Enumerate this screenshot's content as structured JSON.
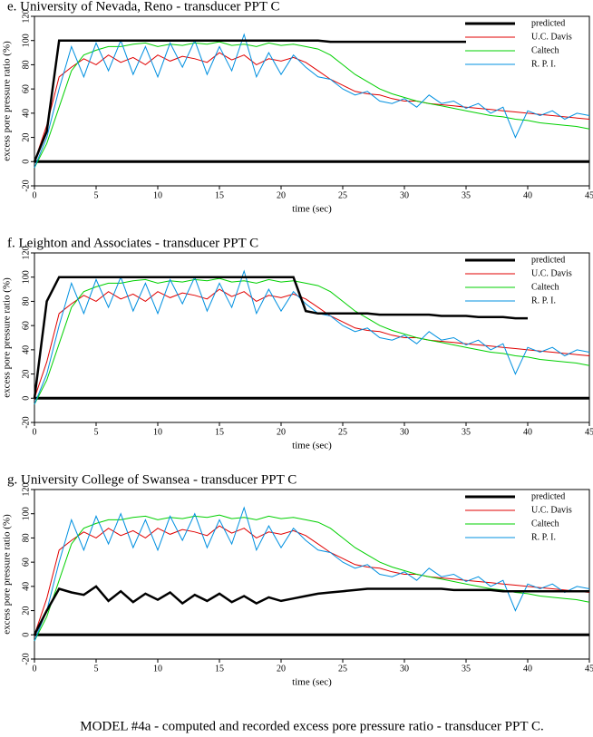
{
  "chart_data": [
    {
      "type": "line",
      "title": "e. University of Nevada, Reno - transducer PPT C",
      "x_label": "time (sec)",
      "y_label": "excess pore pressure ratio (%)",
      "xlim": [
        0,
        45
      ],
      "ylim": [
        -20,
        120
      ],
      "xticks": [
        0,
        5,
        10,
        15,
        20,
        25,
        30,
        35,
        40,
        45
      ],
      "yticks": [
        -20,
        0,
        20,
        40,
        60,
        80,
        100,
        120
      ],
      "x": [
        0,
        1,
        2,
        3,
        4,
        5,
        6,
        7,
        8,
        9,
        10,
        11,
        12,
        13,
        14,
        15,
        16,
        17,
        18,
        19,
        20,
        21,
        22,
        23,
        24,
        25,
        26,
        27,
        28,
        29,
        30,
        31,
        32,
        33,
        34,
        35,
        36,
        37,
        38,
        39,
        40,
        41,
        42,
        43,
        44,
        45
      ],
      "series": [
        {
          "name": "predicted",
          "color": "#000000",
          "values": [
            0,
            25,
            100,
            100,
            100,
            100,
            100,
            100,
            100,
            100,
            100,
            100,
            100,
            100,
            100,
            100,
            100,
            100,
            100,
            100,
            100,
            100,
            100,
            100,
            99,
            99,
            99,
            99,
            99,
            99,
            99,
            99,
            99,
            99,
            99,
            99,
            null,
            null,
            null,
            null,
            null,
            null,
            null,
            null,
            null,
            null
          ]
        },
        {
          "name": "U.C. Davis",
          "color": "#e00000",
          "values": [
            0,
            30,
            70,
            78,
            85,
            80,
            88,
            82,
            86,
            80,
            88,
            83,
            87,
            85,
            82,
            90,
            84,
            88,
            80,
            85,
            83,
            86,
            82,
            75,
            68,
            63,
            58,
            56,
            55,
            52,
            50,
            50,
            48,
            47,
            46,
            45,
            44,
            43,
            42,
            41,
            40,
            39,
            38,
            37,
            36,
            35
          ]
        },
        {
          "name": "Caltech",
          "color": "#00d000",
          "values": [
            -5,
            15,
            45,
            75,
            88,
            92,
            95,
            95,
            97,
            98,
            95,
            97,
            96,
            98,
            97,
            99,
            96,
            97,
            95,
            98,
            96,
            97,
            95,
            93,
            88,
            80,
            72,
            66,
            60,
            56,
            53,
            50,
            48,
            46,
            44,
            42,
            40,
            38,
            37,
            35,
            34,
            32,
            31,
            30,
            29,
            27
          ]
        },
        {
          "name": "R. P. I.",
          "color": "#0090e0",
          "values": [
            -5,
            20,
            60,
            95,
            70,
            98,
            75,
            100,
            72,
            95,
            70,
            98,
            78,
            100,
            72,
            95,
            75,
            105,
            70,
            90,
            72,
            88,
            78,
            70,
            68,
            60,
            55,
            58,
            50,
            48,
            52,
            45,
            55,
            48,
            50,
            44,
            48,
            40,
            45,
            20,
            42,
            38,
            42,
            35,
            40,
            38
          ]
        }
      ]
    },
    {
      "type": "line",
      "title": "f. Leighton and Associates - transducer PPT C",
      "x_label": "time (sec)",
      "y_label": "excess pore pressure ratio (%)",
      "xlim": [
        0,
        45
      ],
      "ylim": [
        -20,
        120
      ],
      "xticks": [
        0,
        5,
        10,
        15,
        20,
        25,
        30,
        35,
        40,
        45
      ],
      "yticks": [
        -20,
        0,
        20,
        40,
        60,
        80,
        100,
        120
      ],
      "x": [
        0,
        1,
        2,
        3,
        4,
        5,
        6,
        7,
        8,
        9,
        10,
        11,
        12,
        13,
        14,
        15,
        16,
        17,
        18,
        19,
        20,
        21,
        22,
        23,
        24,
        25,
        26,
        27,
        28,
        29,
        30,
        31,
        32,
        33,
        34,
        35,
        36,
        37,
        38,
        39,
        40,
        41,
        42,
        43,
        44,
        45
      ],
      "series": [
        {
          "name": "predicted",
          "color": "#000000",
          "values": [
            0,
            80,
            100,
            100,
            100,
            100,
            100,
            100,
            100,
            100,
            100,
            100,
            100,
            100,
            100,
            100,
            100,
            100,
            100,
            100,
            100,
            100,
            72,
            70,
            70,
            70,
            70,
            70,
            69,
            69,
            69,
            69,
            69,
            68,
            68,
            68,
            67,
            67,
            67,
            66,
            66,
            null,
            null,
            null,
            null,
            null
          ]
        },
        {
          "name": "U.C. Davis",
          "color": "#e00000",
          "values": [
            0,
            30,
            70,
            78,
            85,
            80,
            88,
            82,
            86,
            80,
            88,
            83,
            87,
            85,
            82,
            90,
            84,
            88,
            80,
            85,
            83,
            86,
            82,
            75,
            68,
            63,
            58,
            56,
            55,
            52,
            50,
            50,
            48,
            47,
            46,
            45,
            44,
            43,
            42,
            41,
            40,
            39,
            38,
            37,
            36,
            35
          ]
        },
        {
          "name": "Caltech",
          "color": "#00d000",
          "values": [
            -5,
            15,
            45,
            75,
            88,
            92,
            95,
            95,
            97,
            98,
            95,
            97,
            96,
            98,
            97,
            99,
            96,
            97,
            95,
            98,
            96,
            97,
            95,
            93,
            88,
            80,
            72,
            66,
            60,
            56,
            53,
            50,
            48,
            46,
            44,
            42,
            40,
            38,
            37,
            35,
            34,
            32,
            31,
            30,
            29,
            27
          ]
        },
        {
          "name": "R. P. I.",
          "color": "#0090e0",
          "values": [
            -5,
            20,
            60,
            95,
            70,
            98,
            75,
            100,
            72,
            95,
            70,
            98,
            78,
            100,
            72,
            95,
            75,
            105,
            70,
            90,
            72,
            88,
            78,
            70,
            68,
            60,
            55,
            58,
            50,
            48,
            52,
            45,
            55,
            48,
            50,
            44,
            48,
            40,
            45,
            20,
            42,
            38,
            42,
            35,
            40,
            38
          ]
        }
      ]
    },
    {
      "type": "line",
      "title": "g. University College of Swansea - transducer PPT C",
      "x_label": "time (sec)",
      "y_label": "excess pore pressure ratio (%)",
      "xlim": [
        0,
        45
      ],
      "ylim": [
        -20,
        120
      ],
      "xticks": [
        0,
        5,
        10,
        15,
        20,
        25,
        30,
        35,
        40,
        45
      ],
      "yticks": [
        -20,
        0,
        20,
        40,
        60,
        80,
        100,
        120
      ],
      "x": [
        0,
        1,
        2,
        3,
        4,
        5,
        6,
        7,
        8,
        9,
        10,
        11,
        12,
        13,
        14,
        15,
        16,
        17,
        18,
        19,
        20,
        21,
        22,
        23,
        24,
        25,
        26,
        27,
        28,
        29,
        30,
        31,
        32,
        33,
        34,
        35,
        36,
        37,
        38,
        39,
        40,
        41,
        42,
        43,
        44,
        45
      ],
      "series": [
        {
          "name": "predicted",
          "color": "#000000",
          "values": [
            0,
            20,
            38,
            35,
            33,
            40,
            28,
            36,
            27,
            34,
            29,
            35,
            26,
            33,
            28,
            34,
            27,
            32,
            26,
            31,
            28,
            30,
            32,
            34,
            35,
            36,
            37,
            38,
            38,
            38,
            38,
            38,
            38,
            38,
            37,
            37,
            37,
            37,
            36,
            36,
            36,
            36,
            36,
            36,
            36,
            36
          ]
        },
        {
          "name": "U.C. Davis",
          "color": "#e00000",
          "values": [
            0,
            30,
            70,
            78,
            85,
            80,
            88,
            82,
            86,
            80,
            88,
            83,
            87,
            85,
            82,
            90,
            84,
            88,
            80,
            85,
            83,
            86,
            82,
            75,
            68,
            63,
            58,
            56,
            55,
            52,
            50,
            50,
            48,
            47,
            46,
            45,
            44,
            43,
            42,
            41,
            40,
            39,
            38,
            37,
            36,
            35
          ]
        },
        {
          "name": "Caltech",
          "color": "#00d000",
          "values": [
            -5,
            15,
            45,
            75,
            88,
            92,
            95,
            95,
            97,
            98,
            95,
            97,
            96,
            98,
            97,
            99,
            96,
            97,
            95,
            98,
            96,
            97,
            95,
            93,
            88,
            80,
            72,
            66,
            60,
            56,
            53,
            50,
            48,
            46,
            44,
            42,
            40,
            38,
            37,
            35,
            34,
            32,
            31,
            30,
            29,
            27
          ]
        },
        {
          "name": "R. P. I.",
          "color": "#0090e0",
          "values": [
            -5,
            20,
            60,
            95,
            70,
            98,
            75,
            100,
            72,
            95,
            70,
            98,
            78,
            100,
            72,
            95,
            75,
            105,
            70,
            90,
            72,
            88,
            78,
            70,
            68,
            60,
            55,
            58,
            50,
            48,
            52,
            45,
            55,
            48,
            50,
            44,
            48,
            40,
            45,
            20,
            42,
            38,
            42,
            35,
            40,
            38
          ]
        }
      ]
    }
  ],
  "caption": "MODEL #4a - computed and recorded excess pore pressure ratio - transducer PPT C."
}
